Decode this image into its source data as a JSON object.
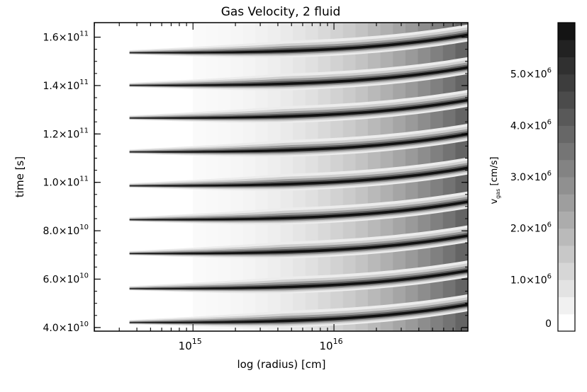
{
  "chart_data": {
    "type": "heatmap",
    "title": "Gas Velocity, 2 fluid",
    "xlabel": "log (radius) [cm]",
    "ylabel": "time [s]",
    "x_scale": "log",
    "x_ticks": [
      {
        "exp": "15",
        "base": "10"
      },
      {
        "exp": "16",
        "base": "10"
      }
    ],
    "y_ticks": [
      {
        "value": 40000000000.0,
        "mant": "4.0×10",
        "exp": "10"
      },
      {
        "value": 60000000000.0,
        "mant": "6.0×10",
        "exp": "10"
      },
      {
        "value": 80000000000.0,
        "mant": "8.0×10",
        "exp": "10"
      },
      {
        "value": 100000000000.0,
        "mant": "1.0×10",
        "exp": "11"
      },
      {
        "value": 120000000000.0,
        "mant": "1.2×10",
        "exp": "11"
      },
      {
        "value": 140000000000.0,
        "mant": "1.4×10",
        "exp": "11"
      },
      {
        "value": 160000000000.0,
        "mant": "1.6×10",
        "exp": "11"
      }
    ],
    "ylim": [
      38500000000.0,
      166000000000.0
    ],
    "xlim_log10": [
      14.3,
      16.95
    ],
    "pulse_times": [
      42000000000.0,
      56000000000.0,
      70500000000.0,
      84500000000.0,
      98500000000.0,
      112500000000.0,
      126500000000.0,
      140000000000.0,
      153500000000.0
    ],
    "pulse_start_log10_radius": 14.55,
    "colorbar": {
      "label_main": "v",
      "label_sub": "gas",
      "label_units": "[cm/s]",
      "range": [
        0,
        6000000.0
      ],
      "levels": 18,
      "ticks": [
        {
          "value": 0,
          "mant": "0",
          "exp": ""
        },
        {
          "value": 1000000.0,
          "mant": "1.0×10",
          "exp": "6"
        },
        {
          "value": 2000000.0,
          "mant": "2.0×10",
          "exp": "6"
        },
        {
          "value": 3000000.0,
          "mant": "3.0×10",
          "exp": "6"
        },
        {
          "value": 4000000.0,
          "mant": "4.0×10",
          "exp": "6"
        },
        {
          "value": 5000000.0,
          "mant": "5.0×10",
          "exp": "6"
        }
      ]
    }
  }
}
